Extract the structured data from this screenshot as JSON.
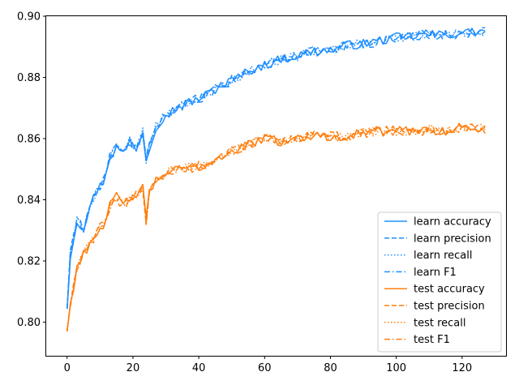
{
  "chart_data": {
    "type": "line",
    "title": "",
    "xlabel": "",
    "ylabel": "",
    "xlim": [
      -6.35,
      133.35
    ],
    "ylim": [
      0.789,
      0.9
    ],
    "xticks": [
      0,
      20,
      40,
      60,
      80,
      100,
      120
    ],
    "yticks": [
      0.8,
      0.82,
      0.84,
      0.86,
      0.88,
      0.9
    ],
    "xtick_labels": [
      "0",
      "20",
      "40",
      "60",
      "80",
      "100",
      "120"
    ],
    "ytick_labels": [
      "0.80",
      "0.82",
      "0.84",
      "0.86",
      "0.88",
      "0.90"
    ],
    "grid": false,
    "legend_position": "lower-right",
    "colors": {
      "learn": "#1f8fff",
      "test": "#ff7f0e",
      "axis": "#000000"
    },
    "learn_accuracy_anchors": [
      [
        0,
        0.805
      ],
      [
        1,
        0.822
      ],
      [
        3,
        0.833
      ],
      [
        5,
        0.831
      ],
      [
        7,
        0.838
      ],
      [
        9,
        0.843
      ],
      [
        11,
        0.846
      ],
      [
        13,
        0.854
      ],
      [
        15,
        0.857
      ],
      [
        17,
        0.855
      ],
      [
        19,
        0.859
      ],
      [
        21,
        0.857
      ],
      [
        23,
        0.862
      ],
      [
        24,
        0.853
      ],
      [
        25,
        0.857
      ],
      [
        27,
        0.864
      ],
      [
        30,
        0.868
      ],
      [
        35,
        0.871
      ],
      [
        40,
        0.873
      ],
      [
        45,
        0.876
      ],
      [
        50,
        0.879
      ],
      [
        55,
        0.882
      ],
      [
        60,
        0.884
      ],
      [
        65,
        0.886
      ],
      [
        70,
        0.887
      ],
      [
        75,
        0.8885
      ],
      [
        80,
        0.889
      ],
      [
        85,
        0.8905
      ],
      [
        90,
        0.891
      ],
      [
        95,
        0.892
      ],
      [
        100,
        0.893
      ],
      [
        105,
        0.8935
      ],
      [
        110,
        0.894
      ],
      [
        115,
        0.894
      ],
      [
        120,
        0.8945
      ],
      [
        127,
        0.895
      ]
    ],
    "test_accuracy_anchors": [
      [
        0,
        0.797
      ],
      [
        1,
        0.806
      ],
      [
        3,
        0.818
      ],
      [
        5,
        0.822
      ],
      [
        7,
        0.826
      ],
      [
        9,
        0.829
      ],
      [
        11,
        0.832
      ],
      [
        13,
        0.838
      ],
      [
        15,
        0.841
      ],
      [
        17,
        0.838
      ],
      [
        19,
        0.84
      ],
      [
        21,
        0.842
      ],
      [
        23,
        0.844
      ],
      [
        24,
        0.833
      ],
      [
        25,
        0.843
      ],
      [
        27,
        0.846
      ],
      [
        30,
        0.849
      ],
      [
        35,
        0.85
      ],
      [
        40,
        0.851
      ],
      [
        45,
        0.853
      ],
      [
        50,
        0.856
      ],
      [
        55,
        0.858
      ],
      [
        60,
        0.86
      ],
      [
        65,
        0.859
      ],
      [
        70,
        0.86
      ],
      [
        75,
        0.861
      ],
      [
        80,
        0.8605
      ],
      [
        85,
        0.861
      ],
      [
        90,
        0.862
      ],
      [
        95,
        0.8625
      ],
      [
        100,
        0.8625
      ],
      [
        105,
        0.8625
      ],
      [
        110,
        0.863
      ],
      [
        115,
        0.8625
      ],
      [
        120,
        0.8635
      ],
      [
        127,
        0.863
      ]
    ],
    "series": [
      {
        "name": "learn accuracy",
        "base": "learn_accuracy_anchors",
        "color": "#1f8fff",
        "dash": "",
        "jitter": 0.0015
      },
      {
        "name": "learn precision",
        "base": "learn_accuracy_anchors",
        "color": "#1f8fff",
        "dash": "6,3",
        "jitter": 0.0017
      },
      {
        "name": "learn recall",
        "base": "learn_accuracy_anchors",
        "color": "#1f8fff",
        "dash": "1.5,2.5",
        "jitter": 0.0015
      },
      {
        "name": "learn F1",
        "base": "learn_accuracy_anchors",
        "color": "#1f8fff",
        "dash": "7,3,1.5,3",
        "jitter": 0.0016
      },
      {
        "name": "test accuracy",
        "base": "test_accuracy_anchors",
        "color": "#ff7f0e",
        "dash": "",
        "jitter": 0.0015
      },
      {
        "name": "test precision",
        "base": "test_accuracy_anchors",
        "color": "#ff7f0e",
        "dash": "6,3",
        "jitter": 0.0018
      },
      {
        "name": "test recall",
        "base": "test_accuracy_anchors",
        "color": "#ff7f0e",
        "dash": "1.5,2.5",
        "jitter": 0.0015
      },
      {
        "name": "test F1",
        "base": "test_accuracy_anchors",
        "color": "#ff7f0e",
        "dash": "7,3,1.5,3",
        "jitter": 0.0016
      }
    ]
  }
}
